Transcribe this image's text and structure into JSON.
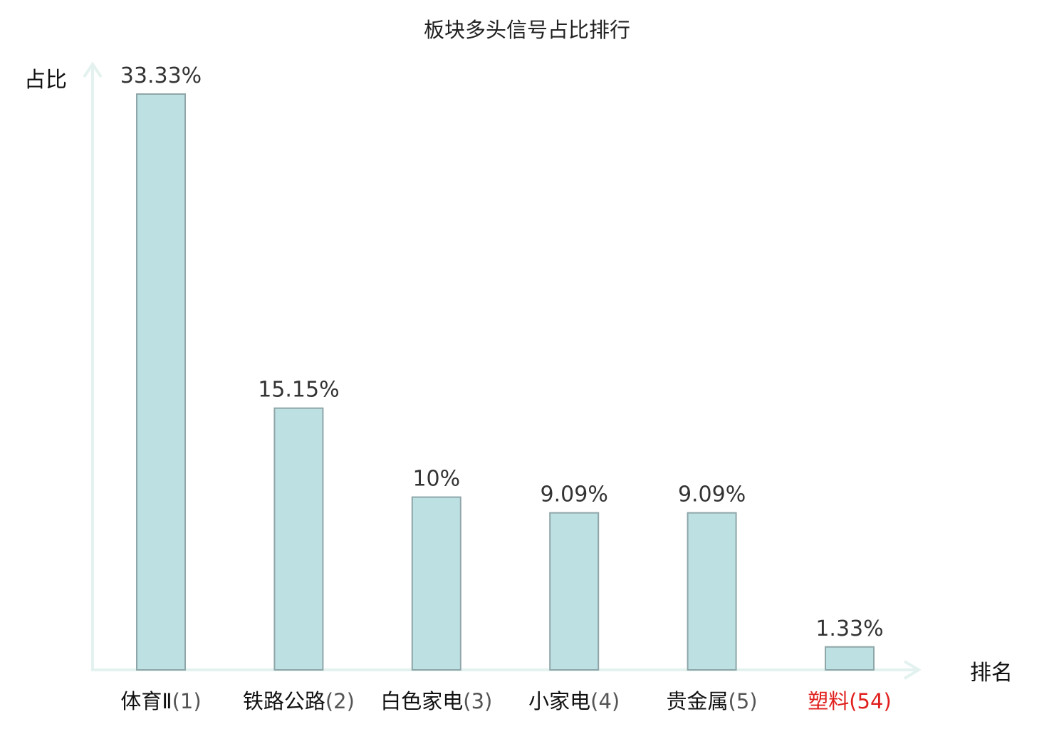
{
  "chart_data": {
    "type": "bar",
    "title": "板块多头信号占比排行",
    "ylabel": "占比",
    "xlabel": "排名",
    "ylim": [
      0,
      34
    ],
    "grid": false,
    "categories": [
      {
        "name": "体育Ⅱ",
        "rank": "(1)",
        "highlight": false
      },
      {
        "name": "铁路公路",
        "rank": "(2)",
        "highlight": false
      },
      {
        "name": "白色家电",
        "rank": "(3)",
        "highlight": false
      },
      {
        "name": "小家电",
        "rank": "(4)",
        "highlight": false
      },
      {
        "name": "贵金属",
        "rank": "(5)",
        "highlight": false
      },
      {
        "name": "塑料",
        "rank": "(54)",
        "highlight": true
      }
    ],
    "values": [
      33.33,
      15.15,
      10,
      9.09,
      9.09,
      1.33
    ],
    "value_labels": [
      "33.33%",
      "15.15%",
      "10%",
      "9.09%",
      "9.09%",
      "1.33%"
    ]
  },
  "colors": {
    "bar_fill": "#bde0e3",
    "bar_stroke": "#8fa6a8",
    "axis": "#e3f2ef",
    "text": "#333333",
    "category_text": "#111111",
    "rank_text": "#555555",
    "highlight": "#e0201e"
  }
}
